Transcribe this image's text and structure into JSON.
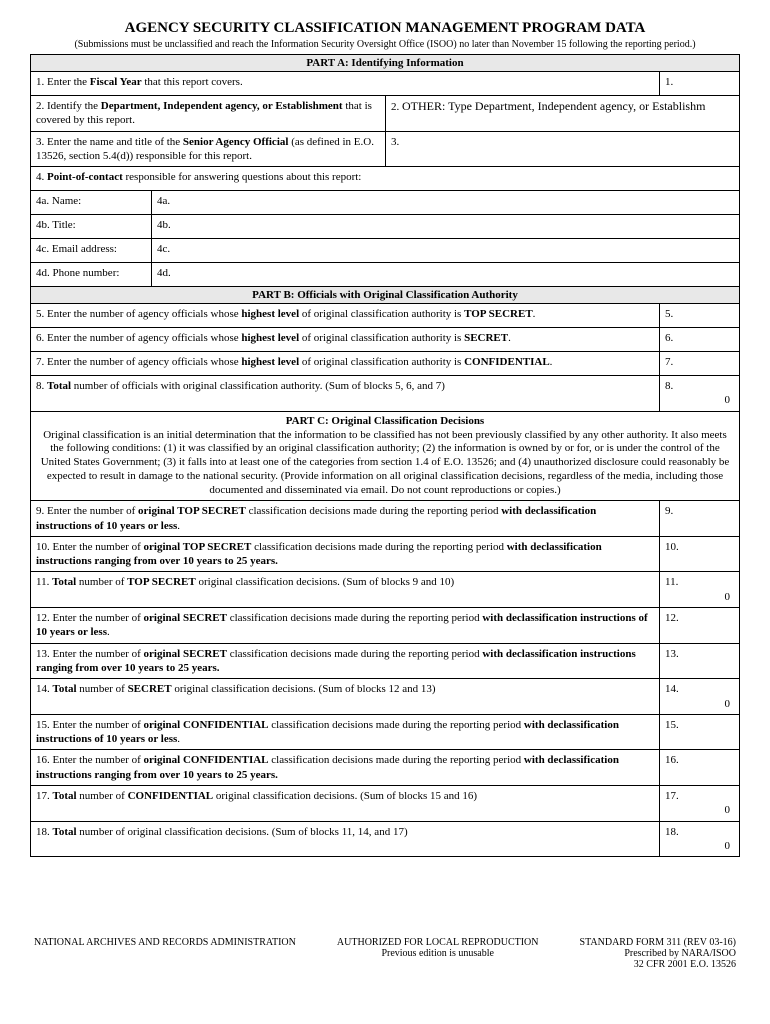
{
  "header": {
    "title": "AGENCY SECURITY CLASSIFICATION MANAGEMENT PROGRAM DATA",
    "subtitle": "(Submissions must be unclassified and reach the Information Security Oversight Office (ISOO) no later than November 15 following the reporting period.)"
  },
  "partA": {
    "header": "PART A:  Identifying Information",
    "q1": {
      "label_pre": "1. Enter the ",
      "label_bold": "Fiscal Year",
      "label_post": " that this report covers.",
      "num": "1."
    },
    "q2": {
      "label_pre": "2. Identify the ",
      "label_bold": "Department, Independent agency, or Establishment",
      "label_post": " that is covered by this report.",
      "num": "2.",
      "other": "OTHER: Type Department, Independent agency, or Establishm"
    },
    "q3": {
      "label_pre": "3. Enter the name and title of the ",
      "label_bold": "Senior Agency Official",
      "label_post": " (as defined in E.O. 13526, section 5.4(d)) responsible for this report.",
      "num": "3."
    },
    "q4": {
      "label_pre": "4. ",
      "label_bold": "Point-of-contact",
      "label_post": " responsible for answering questions about this report:"
    },
    "q4a": {
      "label": "4a.  Name:",
      "num": "4a."
    },
    "q4b": {
      "label": "4b.  Title:",
      "num": "4b."
    },
    "q4c": {
      "label": "4c.  Email address:",
      "num": "4c."
    },
    "q4d": {
      "label": "4d.  Phone number:",
      "num": "4d."
    }
  },
  "partB": {
    "header": "PART B:  Officials with Original Classification Authority",
    "q5": {
      "pre": "5. Enter the number of agency officials whose ",
      "b1": "highest level",
      "mid": " of original classification authority is ",
      "b2": "TOP SECRET",
      "post": ".",
      "num": "5."
    },
    "q6": {
      "pre": "6. Enter the number of agency officials whose ",
      "b1": "highest level",
      "mid": " of original classification authority is ",
      "b2": "SECRET",
      "post": ".",
      "num": "6."
    },
    "q7": {
      "pre": "7. Enter the number of agency officials whose ",
      "b1": "highest level",
      "mid": " of original classification authority is ",
      "b2": "CONFIDENTIAL",
      "post": ".",
      "num": "7."
    },
    "q8": {
      "pre": "8. ",
      "b1": "Total",
      "post": " number of officials with original classification authority.  (Sum of blocks 5, 6, and 7)",
      "num": "8.",
      "val": "0"
    }
  },
  "partC": {
    "header": "PART C:  Original Classification Decisions",
    "desc": "Original classification is an initial determination that the information to be classified has not been previously classified by any other authority.  It also meets the following conditions:  (1) it was classified by an original classification authority; (2) the information is owned by or for, or is under the control of the United States Government; (3) it falls into at least one of the categories from section 1.4 of E.O. 13526; and (4) unauthorized disclosure could reasonably be expected to result in damage to the national security.  (Provide information on all original classification decisions, regardless of the media, including those documented and disseminated via email.  Do not count reproductions or copies.)",
    "q9": {
      "html": "9. Enter the number of <b>original TOP SECRET</b> classification decisions made during the reporting period <b>with declassification instructions of 10 years or less</b>.",
      "num": "9."
    },
    "q10": {
      "html": "10. Enter the number of <b>original TOP SECRET</b> classification decisions made during the reporting period <b>with declassification instructions ranging from over 10 years to 25 years.</b>",
      "num": "10."
    },
    "q11": {
      "html": "11. <b>Total</b> number of <b>TOP SECRET</b> original classification decisions.  (Sum of blocks 9 and 10)",
      "num": "11.",
      "val": "0"
    },
    "q12": {
      "html": "12. Enter the number of <b>original SECRET</b> classification decisions made during the reporting period <b>with declassification instructions of 10 years or less</b>.",
      "num": "12."
    },
    "q13": {
      "html": "13. Enter the number of <b>original SECRET</b> classification decisions made during the reporting period <b>with declassification instructions ranging from over 10 years to 25 years.</b>",
      "num": "13."
    },
    "q14": {
      "html": "14. <b>Total</b> number of <b>SECRET</b> original classification decisions.  (Sum of blocks 12 and 13)",
      "num": "14.",
      "val": "0"
    },
    "q15": {
      "html": "15. Enter the number of <b>original CONFIDENTIAL</b> classification decisions made during the reporting period <b>with declassification instructions of 10 years or less</b>.",
      "num": "15."
    },
    "q16": {
      "html": "16. Enter the number of <b>original CONFIDENTIAL</b> classification decisions made during the reporting period <b>with declassification instructions ranging from over 10 years to 25 years.</b>",
      "num": "16."
    },
    "q17": {
      "html": "17. <b>Total</b> number of <b>CONFIDENTIAL</b> original classification decisions.  (Sum of blocks 15 and 16)",
      "num": "17.",
      "val": "0"
    },
    "q18": {
      "html": "18. <b>Total</b> number of original classification decisions.  (Sum of blocks 11, 14, and 17)",
      "num": "18.",
      "val": "0"
    }
  },
  "footer": {
    "left": "NATIONAL ARCHIVES AND RECORDS ADMINISTRATION",
    "center1": "AUTHORIZED FOR LOCAL REPRODUCTION",
    "center2": "Previous edition is unusable",
    "right1": "STANDARD FORM 311 (REV 03-16)",
    "right2": "Prescribed by NARA/ISOO",
    "right3": "32 CFR 2001   E.O. 13526"
  }
}
